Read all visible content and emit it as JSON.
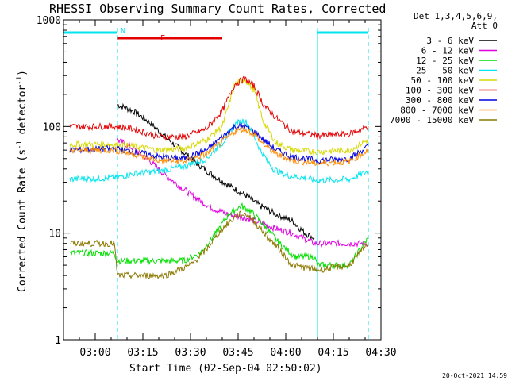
{
  "chart_data": {
    "type": "line",
    "title": "RHESSI Observing Summary Count Rates, Corrected",
    "xlabel": "Start Time (02-Sep-04 02:50:02)",
    "ylabel": "Corrected Count Rate (s",
    "ylabel_sup1": "-1",
    "ylabel_mid": " detector",
    "ylabel_sup2": "-1",
    "ylabel_end": ")",
    "y_scale": "log",
    "ylim": [
      1,
      1000
    ],
    "xlim": [
      "02:50",
      "04:30"
    ],
    "x_ticks": [
      "03:00",
      "03:15",
      "03:30",
      "03:45",
      "04:00",
      "04:15",
      "04:30"
    ],
    "y_ticks": [
      "1",
      "10",
      "100",
      "1000"
    ],
    "legend_header": [
      "Det 1,3,4,5,6,9,",
      "Att 0"
    ],
    "legend_placement": "right",
    "timestamp": "20-Oct-2021 14:59",
    "flags": [
      {
        "label": "N",
        "color": "#00e5ee",
        "segments": [
          [
            "02:50",
            "03:07"
          ],
          [
            "04:10",
            "04:26"
          ]
        ]
      },
      {
        "label": "F",
        "color": "#e50000",
        "segments": [
          [
            "03:07",
            "03:40"
          ]
        ]
      }
    ],
    "night_boundaries": [
      "02:50",
      "03:07",
      "04:10",
      "04:26"
    ],
    "series": [
      {
        "name": "3 - 6 keV",
        "color": "#000000",
        "points": [
          [
            "03:07",
            160
          ],
          [
            "03:12",
            140
          ],
          [
            "03:17",
            110
          ],
          [
            "03:22",
            80
          ],
          [
            "03:27",
            60
          ],
          [
            "03:32",
            45
          ],
          [
            "03:37",
            35
          ],
          [
            "03:42",
            28
          ],
          [
            "03:47",
            23
          ],
          [
            "03:52",
            18
          ],
          [
            "03:57",
            15
          ],
          [
            "04:02",
            13
          ],
          [
            "04:06",
            10
          ],
          [
            "04:09",
            9
          ]
        ]
      },
      {
        "name": "6 - 12 keV",
        "color": "#e000e0",
        "points": [
          [
            "03:07",
            75
          ],
          [
            "03:12",
            62
          ],
          [
            "03:17",
            48
          ],
          [
            "03:22",
            35
          ],
          [
            "03:27",
            27
          ],
          [
            "03:32",
            21
          ],
          [
            "03:37",
            17
          ],
          [
            "03:42",
            15
          ],
          [
            "03:47",
            14
          ],
          [
            "03:52",
            12.5
          ],
          [
            "03:57",
            11
          ],
          [
            "04:02",
            10
          ],
          [
            "04:09",
            8
          ],
          [
            "04:26",
            8
          ]
        ]
      },
      {
        "name": "12 - 25 keV",
        "color": "#00e000",
        "points": [
          [
            "02:52",
            6.5
          ],
          [
            "03:06",
            6.5
          ],
          [
            "03:07",
            5.5
          ],
          [
            "03:20",
            5.5
          ],
          [
            "03:28",
            5.5
          ],
          [
            "03:33",
            6.5
          ],
          [
            "03:38",
            10
          ],
          [
            "03:42",
            15
          ],
          [
            "03:46",
            18
          ],
          [
            "03:49",
            16
          ],
          [
            "03:53",
            12
          ],
          [
            "03:58",
            8
          ],
          [
            "04:03",
            6
          ],
          [
            "04:09",
            6
          ],
          [
            "04:10",
            5
          ],
          [
            "04:20",
            5
          ],
          [
            "04:26",
            9
          ]
        ]
      },
      {
        "name": "25 - 50 keV",
        "color": "#00e5ee",
        "points": [
          [
            "02:52",
            32
          ],
          [
            "03:06",
            33
          ],
          [
            "03:12",
            36
          ],
          [
            "03:20",
            38
          ],
          [
            "03:28",
            42
          ],
          [
            "03:35",
            50
          ],
          [
            "03:40",
            70
          ],
          [
            "03:44",
            105
          ],
          [
            "03:47",
            115
          ],
          [
            "03:49",
            95
          ],
          [
            "03:52",
            60
          ],
          [
            "03:56",
            40
          ],
          [
            "04:00",
            35
          ],
          [
            "04:06",
            33
          ],
          [
            "04:10",
            31
          ],
          [
            "04:20",
            32
          ],
          [
            "04:26",
            38
          ]
        ]
      },
      {
        "name": "50 - 100 keV",
        "color": "#d8d800",
        "points": [
          [
            "02:52",
            68
          ],
          [
            "03:06",
            68
          ],
          [
            "03:12",
            65
          ],
          [
            "03:20",
            60
          ],
          [
            "03:28",
            62
          ],
          [
            "03:35",
            75
          ],
          [
            "03:40",
            100
          ],
          [
            "03:44",
            250
          ],
          [
            "03:47",
            280
          ],
          [
            "03:50",
            220
          ],
          [
            "03:53",
            110
          ],
          [
            "03:57",
            70
          ],
          [
            "04:02",
            60
          ],
          [
            "04:10",
            58
          ],
          [
            "04:20",
            60
          ],
          [
            "04:26",
            75
          ]
        ]
      },
      {
        "name": "100 - 300 keV",
        "color": "#e50000",
        "points": [
          [
            "02:52",
            100
          ],
          [
            "03:06",
            100
          ],
          [
            "03:12",
            95
          ],
          [
            "03:20",
            80
          ],
          [
            "03:28",
            80
          ],
          [
            "03:35",
            95
          ],
          [
            "03:40",
            140
          ],
          [
            "03:44",
            250
          ],
          [
            "03:47",
            280
          ],
          [
            "03:50",
            240
          ],
          [
            "03:53",
            160
          ],
          [
            "03:57",
            120
          ],
          [
            "04:02",
            90
          ],
          [
            "04:10",
            82
          ],
          [
            "04:20",
            85
          ],
          [
            "04:26",
            100
          ]
        ]
      },
      {
        "name": "300 - 800 keV",
        "color": "#0000e0",
        "points": [
          [
            "02:52",
            60
          ],
          [
            "03:06",
            62
          ],
          [
            "03:12",
            58
          ],
          [
            "03:20",
            52
          ],
          [
            "03:28",
            50
          ],
          [
            "03:35",
            60
          ],
          [
            "03:40",
            80
          ],
          [
            "03:44",
            100
          ],
          [
            "03:47",
            100
          ],
          [
            "03:50",
            90
          ],
          [
            "03:53",
            75
          ],
          [
            "03:57",
            60
          ],
          [
            "04:02",
            52
          ],
          [
            "04:10",
            48
          ],
          [
            "04:20",
            50
          ],
          [
            "04:26",
            65
          ]
        ]
      },
      {
        "name": "800 - 7000 keV",
        "color": "#ff8c00",
        "points": [
          [
            "02:52",
            60
          ],
          [
            "03:06",
            60
          ],
          [
            "03:12",
            55
          ],
          [
            "03:20",
            48
          ],
          [
            "03:28",
            47
          ],
          [
            "03:35",
            55
          ],
          [
            "03:40",
            72
          ],
          [
            "03:44",
            90
          ],
          [
            "03:47",
            95
          ],
          [
            "03:50",
            85
          ],
          [
            "03:53",
            68
          ],
          [
            "03:57",
            55
          ],
          [
            "04:02",
            48
          ],
          [
            "04:10",
            45
          ],
          [
            "04:20",
            47
          ],
          [
            "04:26",
            60
          ]
        ]
      },
      {
        "name": "7000 - 15000 keV",
        "color": "#8c7800",
        "points": [
          [
            "02:52",
            8
          ],
          [
            "03:06",
            8
          ],
          [
            "03:07",
            4
          ],
          [
            "03:22",
            4
          ],
          [
            "03:30",
            5
          ],
          [
            "03:35",
            7
          ],
          [
            "03:40",
            11
          ],
          [
            "03:45",
            15
          ],
          [
            "03:48",
            15
          ],
          [
            "03:52",
            11
          ],
          [
            "03:58",
            7
          ],
          [
            "04:02",
            5
          ],
          [
            "04:10",
            4.5
          ],
          [
            "04:20",
            5
          ],
          [
            "04:26",
            8
          ]
        ]
      }
    ]
  }
}
